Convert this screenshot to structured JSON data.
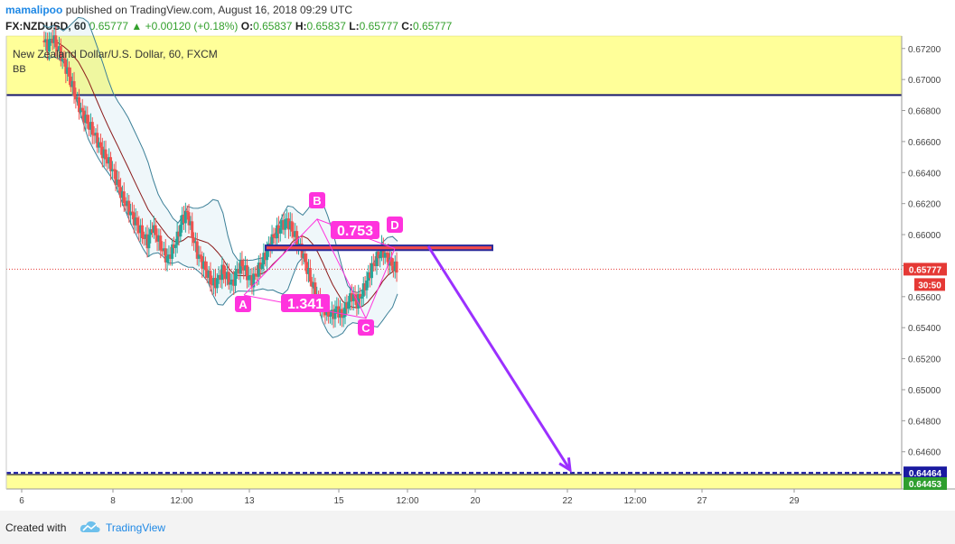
{
  "header": {
    "author": "mamalipoo",
    "published": "published on TradingView.com, August 16, 2018 09:29 UTC",
    "symbol": "FX:NZDUSD, 60",
    "last": "0.65777",
    "change": "+0.00120 (+0.18%)",
    "open_label": "O:",
    "open": "0.65837",
    "high_label": "H:",
    "high": "0.65837",
    "low_label": "L:",
    "low": "0.65777",
    "close_label": "C:",
    "close": "0.65777"
  },
  "legend": {
    "title": "New Zealand Dollar/U.S. Dollar, 60, FXCM",
    "indicator": "BB"
  },
  "footer": {
    "created_with": "Created with",
    "brand": "TradingView"
  },
  "colors": {
    "bull": "#26a69a",
    "bear": "#ef5350",
    "zone": "#ffff99",
    "pattern": "#ff33dd",
    "arrow": "#9b30ff",
    "bb_band": "#3b7f97",
    "bb_basis": "#8b1a1a",
    "dashed_level": "#1a1aa0",
    "price_line": "#e53935",
    "support_tag": "#2e9e2e"
  },
  "icons": [
    "up-triangle-icon",
    "tradingview-cloud-icon"
  ],
  "chart_data": {
    "type": "candlestick",
    "y_axis": {
      "range": [
        0.6436,
        0.6728
      ],
      "ticks": [
        "0.67200",
        "0.67000",
        "0.66800",
        "0.66600",
        "0.66400",
        "0.66200",
        "0.66000",
        "0.65800",
        "0.65600",
        "0.65400",
        "0.65200",
        "0.65000",
        "0.64800",
        "0.64600"
      ]
    },
    "x_axis": {
      "ticks": [
        "6",
        "8",
        "12:00",
        "13",
        "15",
        "12:00",
        "20",
        "22",
        "12:00",
        "27",
        "29"
      ]
    },
    "price_tags": [
      {
        "text": "0.65777",
        "value": 0.65777,
        "role": "last"
      },
      {
        "text": "30:50",
        "role": "countdown"
      },
      {
        "text": "0.64464",
        "value": 0.64464,
        "role": "dashed-level"
      },
      {
        "text": "0.64453",
        "value": 0.64453,
        "role": "support"
      }
    ],
    "zones": [
      {
        "name": "upper-zone",
        "from": 0.669,
        "to": 0.6728
      },
      {
        "name": "lower-zone",
        "from": 0.6436,
        "to": 0.6445
      }
    ],
    "resistance_box": {
      "from": 0.659,
      "to": 0.6593
    },
    "pattern": {
      "labels": [
        "A",
        "B",
        "C",
        "D"
      ],
      "ratios": [
        "0.753",
        "1.341"
      ],
      "points": [
        0.6561,
        0.661,
        0.6546,
        0.6591
      ]
    },
    "projection_target": 0.6447,
    "prices": [
      0.6725,
      0.6722,
      0.6727,
      0.672,
      0.6713,
      0.6705,
      0.6695,
      0.6685,
      0.6678,
      0.6672,
      0.6667,
      0.666,
      0.6653,
      0.6648,
      0.6642,
      0.6633,
      0.6624,
      0.6618,
      0.6612,
      0.6606,
      0.66,
      0.6595,
      0.6605,
      0.6598,
      0.659,
      0.6584,
      0.659,
      0.6598,
      0.661,
      0.6614,
      0.66,
      0.6588,
      0.6582,
      0.6575,
      0.6568,
      0.657,
      0.6577,
      0.6572,
      0.6568,
      0.6577,
      0.6581,
      0.6574,
      0.657,
      0.6576,
      0.6582,
      0.659,
      0.6597,
      0.6602,
      0.6606,
      0.6609,
      0.6603,
      0.6596,
      0.6589,
      0.6578,
      0.6568,
      0.656,
      0.6553,
      0.655,
      0.6548,
      0.6552,
      0.6547,
      0.6555,
      0.6561,
      0.6556,
      0.6562,
      0.657,
      0.6579,
      0.6585,
      0.659,
      0.6586,
      0.658,
      0.6578
    ]
  }
}
